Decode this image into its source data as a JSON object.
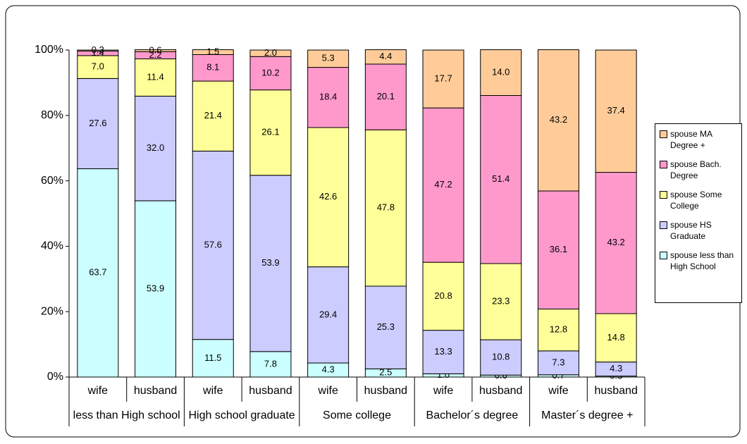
{
  "chart_data": {
    "type": "stacked_bar",
    "categories": [
      "wife",
      "husband",
      "wife",
      "husband",
      "wife",
      "husband",
      "wife",
      "husband",
      "wife",
      "husband"
    ],
    "groups": [
      "less than High school",
      "High school graduate",
      "Some college",
      "Bachelor´s degree",
      "Master´s degree +"
    ],
    "series": [
      {
        "name": "spouse less than High School",
        "color": "#ccffff",
        "values": [
          63.7,
          53.9,
          11.5,
          7.8,
          4.3,
          2.5,
          1.0,
          0.6,
          0.7,
          0.3
        ],
        "value_labels": [
          "63.7",
          "53.9",
          "11.5",
          "7.8",
          "4.3",
          "2.5",
          "1.0",
          "0.6",
          "0.7",
          "0.3"
        ]
      },
      {
        "name": "spouse HS Graduate",
        "color": "#ccccff",
        "values": [
          27.6,
          32.0,
          57.6,
          53.9,
          29.4,
          25.3,
          13.3,
          10.8,
          7.3,
          4.3
        ],
        "value_labels": [
          "27.6",
          "32.0",
          "57.6",
          "53.9",
          "29.4",
          "25.3",
          "13.3",
          "10.8",
          "7.3",
          "4.3"
        ]
      },
      {
        "name": "spouse Some College",
        "color": "#ffff99",
        "values": [
          7.0,
          11.4,
          21.4,
          26.1,
          42.6,
          47.8,
          20.8,
          23.3,
          12.8,
          14.8
        ],
        "value_labels": [
          "7.0",
          "11.4",
          "21.4",
          "26.1",
          "42.6",
          "47.8",
          "20.8",
          "23.3",
          "12.8",
          "14.8"
        ]
      },
      {
        "name": "spouse Bach. Degree",
        "color": "#ff99cc",
        "values": [
          1.4,
          2.2,
          8.1,
          10.2,
          18.4,
          20.1,
          47.2,
          51.4,
          36.1,
          43.2
        ],
        "value_labels": [
          "1.4",
          "2.2",
          "8.1",
          "10.2",
          "18.4",
          "20.1",
          "47.2",
          "51.4",
          "36.1",
          "43.2"
        ]
      },
      {
        "name": "spouse MA Degree +",
        "color": "#ffcc99",
        "values": [
          0.3,
          0.6,
          1.5,
          2.0,
          5.3,
          4.4,
          17.7,
          14.0,
          43.2,
          37.4
        ],
        "value_labels": [
          "0.3",
          "0.6",
          "1.5",
          "2.0",
          "5.3",
          "4.4",
          "17.7",
          "14.0",
          "43.2",
          "37.4"
        ]
      }
    ],
    "ylim": [
      0,
      100
    ],
    "yticks": [
      {
        "value": 0,
        "label": "0%"
      },
      {
        "value": 20,
        "label": "20%"
      },
      {
        "value": 40,
        "label": "40%"
      },
      {
        "value": 60,
        "label": "60%"
      },
      {
        "value": 80,
        "label": "80%"
      },
      {
        "value": 100,
        "label": "100%"
      }
    ],
    "legend": "right"
  }
}
